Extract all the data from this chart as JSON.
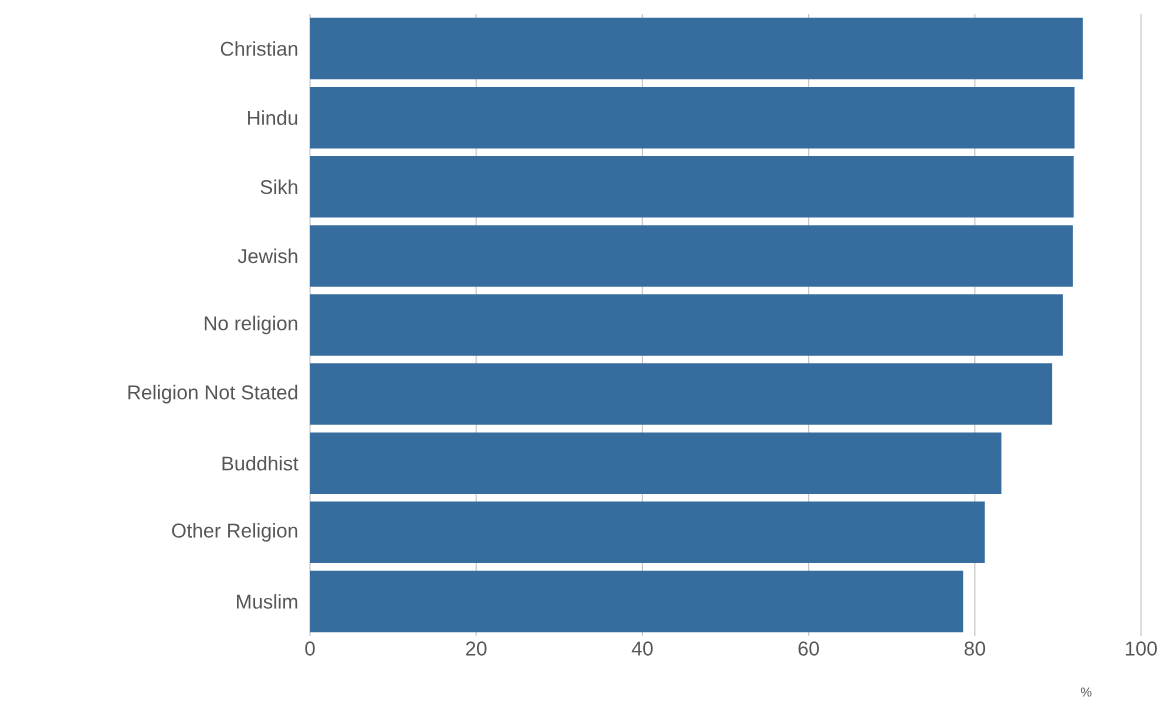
{
  "chart_data": {
    "type": "bar",
    "orientation": "horizontal",
    "categories": [
      "Christian",
      "Hindu",
      "Sikh",
      "Jewish",
      "No religion",
      "Religion Not Stated",
      "Buddhist",
      "Other Religion",
      "Muslim"
    ],
    "values": [
      93.0,
      92.0,
      91.9,
      91.8,
      90.6,
      89.3,
      83.2,
      81.2,
      78.6
    ],
    "color": "#376d9e",
    "xlabel": "%",
    "xlim": [
      0,
      100
    ],
    "xticks": [
      0,
      20,
      40,
      60,
      80,
      100
    ],
    "grid": "x"
  }
}
